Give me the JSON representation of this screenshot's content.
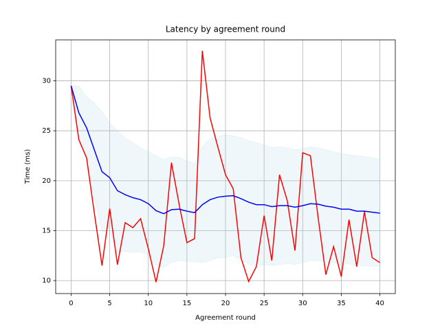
{
  "chart_data": {
    "type": "line",
    "title": "Latency by agreement round",
    "x_label": "Agreement round",
    "y_label": "Time (ms)",
    "x": [
      0,
      1,
      2,
      3,
      4,
      5,
      6,
      7,
      8,
      9,
      10,
      11,
      12,
      13,
      14,
      15,
      16,
      17,
      18,
      19,
      20,
      21,
      22,
      23,
      24,
      25,
      26,
      27,
      28,
      29,
      30,
      31,
      32,
      33,
      34,
      35,
      36,
      37,
      38,
      39,
      40
    ],
    "series": [
      {
        "color": "#ff0000",
        "values": [
          29.5,
          24.1,
          22.3,
          16.8,
          11.5,
          17.2,
          11.6,
          15.8,
          15.3,
          16.2,
          13.2,
          9.85,
          13.5,
          21.8,
          17.6,
          13.8,
          14.2,
          33.0,
          26.3,
          23.4,
          20.6,
          19.2,
          12.3,
          9.9,
          11.4,
          16.5,
          12.0,
          20.6,
          18.0,
          13.0,
          22.8,
          22.5,
          16.3,
          10.6,
          13.4,
          10.4,
          16.1,
          11.4,
          16.9,
          12.3,
          11.8
        ]
      },
      {
        "color": "#0000ff",
        "values": [
          29.5,
          26.8,
          25.3,
          23.1,
          20.9,
          20.3,
          19.0,
          18.6,
          18.3,
          18.1,
          17.7,
          17.0,
          16.7,
          17.1,
          17.15,
          16.95,
          16.8,
          17.6,
          18.1,
          18.35,
          18.45,
          18.5,
          18.2,
          17.85,
          17.6,
          17.6,
          17.4,
          17.5,
          17.5,
          17.35,
          17.5,
          17.7,
          17.65,
          17.45,
          17.35,
          17.15,
          17.15,
          16.95,
          16.95,
          16.85,
          16.75
        ]
      }
    ],
    "band": {
      "color": "#add8e6",
      "upper": [
        29.5,
        29.5,
        28.4,
        27.8,
        26.9,
        25.8,
        25.0,
        24.3,
        23.8,
        23.3,
        22.9,
        22.5,
        22.1,
        22.4,
        22.3,
        22.0,
        21.7,
        23.4,
        24.2,
        24.4,
        24.6,
        24.5,
        24.3,
        24.0,
        23.8,
        23.6,
        23.3,
        23.4,
        23.3,
        23.1,
        23.2,
        23.4,
        23.3,
        23.1,
        22.9,
        22.7,
        22.6,
        22.5,
        22.4,
        22.3,
        22.1
      ],
      "lower": [
        29.5,
        24.1,
        22.2,
        18.4,
        14.9,
        14.8,
        13.0,
        12.9,
        12.8,
        12.9,
        12.5,
        11.5,
        11.3,
        11.8,
        12.0,
        11.9,
        11.9,
        11.8,
        12.0,
        12.3,
        12.3,
        12.5,
        12.1,
        11.7,
        11.4,
        11.6,
        11.5,
        11.6,
        11.7,
        11.6,
        11.8,
        12.0,
        12.0,
        11.8,
        11.8,
        11.6,
        11.7,
        11.4,
        11.5,
        11.4,
        11.4
      ]
    },
    "xlim": [
      -2,
      42
    ],
    "ylim": [
      8.7,
      34.1
    ],
    "xticks": [
      0,
      5,
      10,
      15,
      20,
      25,
      30,
      35,
      40
    ],
    "yticks": [
      10,
      15,
      20,
      25,
      30
    ],
    "grid": true
  }
}
